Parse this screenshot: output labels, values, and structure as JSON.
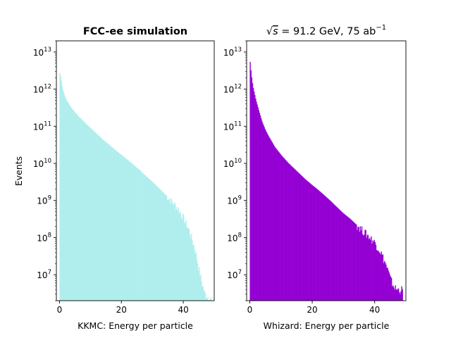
{
  "chart_data": [
    {
      "type": "bar",
      "panel": "left",
      "title": "FCC-ee simulation",
      "xlabel": "KKMC: Energy per particle",
      "ylabel": "Events",
      "yscale": "log",
      "xlim": [
        -1,
        50
      ],
      "ylim": [
        2000000,
        20000000000000
      ],
      "bar_color": "#b0eeee",
      "x_ticks": [
        0,
        20,
        40
      ],
      "y_ticks": [
        {
          "base": "10",
          "exp": "7"
        },
        {
          "base": "10",
          "exp": "8"
        },
        {
          "base": "10",
          "exp": "9"
        },
        {
          "base": "10",
          "exp": "10"
        },
        {
          "base": "10",
          "exp": "11"
        },
        {
          "base": "10",
          "exp": "12"
        },
        {
          "base": "10",
          "exp": "13"
        }
      ],
      "series": [
        {
          "values_x": [
            0,
            0.5,
            1,
            2,
            3,
            4,
            5,
            6,
            8,
            10,
            12,
            14,
            16,
            18,
            20,
            22,
            24,
            26,
            28,
            30,
            32,
            34,
            36,
            38,
            40,
            42,
            43,
            44,
            45,
            46,
            47,
            48,
            49
          ],
          "values_y": [
            3000000000000,
            2000000000000,
            1000000000000,
            550000000000,
            400000000000,
            300000000000,
            240000000000,
            190000000000,
            130000000000,
            90000000000,
            63000000000,
            44000000000,
            32000000000,
            23000000000,
            17000000000,
            12500000000,
            9000000000,
            6500000000,
            4500000000,
            3200000000,
            2200000000,
            1500000000,
            1000000000,
            650000000,
            350000000,
            150000000,
            80000000,
            40000000,
            15000000,
            6000000,
            3000000,
            2500000,
            2200000
          ]
        }
      ]
    },
    {
      "type": "bar",
      "panel": "right",
      "title_pre": "√",
      "title_s": "s",
      "title_mid": " = 91.2 GeV, 75 ab",
      "title_sup": "−1",
      "xlabel": "Whizard: Energy per particle",
      "ylabel": "",
      "yscale": "log",
      "xlim": [
        -1,
        50
      ],
      "ylim": [
        2000000,
        20000000000000
      ],
      "bar_color": "#9400d3",
      "x_ticks": [
        0,
        20,
        40
      ],
      "y_ticks": [
        {
          "base": "10",
          "exp": "7"
        },
        {
          "base": "10",
          "exp": "8"
        },
        {
          "base": "10",
          "exp": "9"
        },
        {
          "base": "10",
          "exp": "10"
        },
        {
          "base": "10",
          "exp": "11"
        },
        {
          "base": "10",
          "exp": "12"
        },
        {
          "base": "10",
          "exp": "13"
        }
      ],
      "series": [
        {
          "values_x": [
            0,
            0.5,
            1,
            2,
            3,
            4,
            5,
            6,
            8,
            10,
            12,
            14,
            16,
            18,
            20,
            22,
            24,
            26,
            28,
            30,
            32,
            34,
            36,
            38,
            40,
            42,
            43,
            44,
            45,
            46,
            47,
            48,
            49
          ],
          "values_y": [
            7000000000000,
            2500000000000,
            1200000000000,
            500000000000,
            250000000000,
            130000000000,
            80000000000,
            55000000000,
            28000000000,
            17000000000,
            11000000000,
            7500000000,
            5200000000,
            3600000000,
            2600000000,
            1900000000,
            1350000000,
            950000000,
            650000000,
            450000000,
            330000000,
            230000000,
            160000000,
            110000000,
            75000000,
            40000000,
            25000000,
            15000000,
            8000000,
            5000000,
            4000000,
            4000000,
            4000000
          ]
        }
      ]
    }
  ]
}
